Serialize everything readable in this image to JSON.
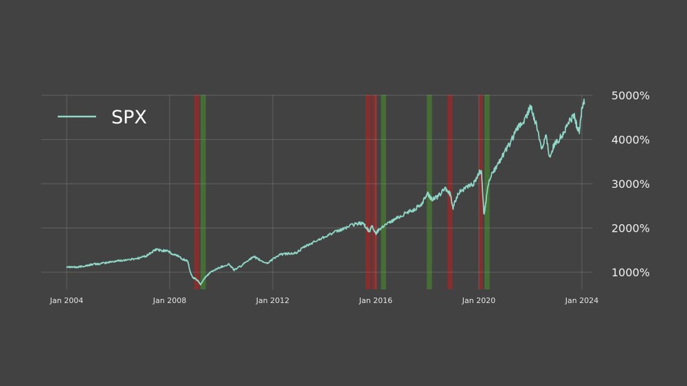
{
  "chart_data": {
    "type": "line",
    "title": "",
    "xlabel": "",
    "ylabel": "",
    "legend": {
      "position": "top-left",
      "entries": [
        "SPX"
      ]
    },
    "grid": true,
    "xlim": [
      2004.0,
      2024.15
    ],
    "ylim": [
      550,
      5080
    ],
    "x_ticks": [
      {
        "value": 2004,
        "label": "Jan 2004"
      },
      {
        "value": 2008,
        "label": "Jan 2008"
      },
      {
        "value": 2012,
        "label": "Jan 2012"
      },
      {
        "value": 2016,
        "label": "Jan 2016"
      },
      {
        "value": 2020,
        "label": "Jan 2020"
      },
      {
        "value": 2024,
        "label": "Jan 2024"
      }
    ],
    "y_ticks": [
      {
        "value": 1000,
        "label": "1000%"
      },
      {
        "value": 2000,
        "label": "2000%"
      },
      {
        "value": 3000,
        "label": "3000%"
      },
      {
        "value": 4000,
        "label": "4000%"
      },
      {
        "value": 5000,
        "label": "5000%"
      }
    ],
    "series": [
      {
        "name": "SPX",
        "color": "#8fd8c8",
        "x": [
          2004.0,
          2004.2,
          2004.4,
          2004.6,
          2004.8,
          2005.0,
          2005.3,
          2005.6,
          2005.9,
          2006.2,
          2006.5,
          2006.8,
          2007.1,
          2007.3,
          2007.5,
          2007.7,
          2007.9,
          2008.1,
          2008.3,
          2008.5,
          2008.7,
          2008.8,
          2008.9,
          2009.0,
          2009.1,
          2009.2,
          2009.4,
          2009.6,
          2009.8,
          2010.0,
          2010.3,
          2010.5,
          2010.8,
          2011.1,
          2011.3,
          2011.6,
          2011.8,
          2012.0,
          2012.3,
          2012.6,
          2012.9,
          2013.2,
          2013.5,
          2013.8,
          2014.1,
          2014.4,
          2014.7,
          2015.0,
          2015.3,
          2015.5,
          2015.65,
          2015.75,
          2015.85,
          2016.0,
          2016.1,
          2016.3,
          2016.6,
          2016.9,
          2017.2,
          2017.5,
          2017.8,
          2018.0,
          2018.1,
          2018.2,
          2018.4,
          2018.7,
          2018.9,
          2019.0,
          2019.2,
          2019.5,
          2019.8,
          2020.0,
          2020.1,
          2020.2,
          2020.25,
          2020.4,
          2020.6,
          2020.9,
          2021.2,
          2021.5,
          2021.8,
          2022.0,
          2022.2,
          2022.45,
          2022.6,
          2022.75,
          2022.9,
          2023.1,
          2023.3,
          2023.5,
          2023.7,
          2023.8,
          2023.9,
          2024.0,
          2024.1
        ],
        "values": [
          1130,
          1120,
          1110,
          1130,
          1150,
          1180,
          1190,
          1220,
          1250,
          1270,
          1290,
          1320,
          1370,
          1450,
          1520,
          1480,
          1500,
          1400,
          1380,
          1300,
          1250,
          1000,
          880,
          850,
          800,
          720,
          900,
          1000,
          1070,
          1120,
          1180,
          1050,
          1150,
          1300,
          1340,
          1240,
          1200,
          1300,
          1400,
          1420,
          1430,
          1560,
          1650,
          1740,
          1830,
          1900,
          1970,
          2050,
          2100,
          2110,
          2000,
          1900,
          2050,
          1870,
          1950,
          2050,
          2150,
          2250,
          2350,
          2420,
          2550,
          2800,
          2700,
          2650,
          2700,
          2900,
          2750,
          2450,
          2800,
          2900,
          3000,
          3250,
          3300,
          2300,
          2500,
          3100,
          3300,
          3600,
          3900,
          4250,
          4450,
          4750,
          4400,
          3800,
          4100,
          3600,
          3850,
          4000,
          4150,
          4400,
          4550,
          4300,
          4200,
          4700,
          4850
        ]
      }
    ],
    "bands": [
      {
        "start": 2008.95,
        "end": 2009.15,
        "color": "#b02222"
      },
      {
        "start": 2009.2,
        "end": 2009.4,
        "color": "#4a8a2e"
      },
      {
        "start": 2015.6,
        "end": 2015.8,
        "color": "#b02222"
      },
      {
        "start": 2015.85,
        "end": 2016.05,
        "color": "#b02222"
      },
      {
        "start": 2016.2,
        "end": 2016.4,
        "color": "#4a8a2e"
      },
      {
        "start": 2017.98,
        "end": 2018.18,
        "color": "#4a8a2e"
      },
      {
        "start": 2018.78,
        "end": 2018.98,
        "color": "#b02222"
      },
      {
        "start": 2020.0,
        "end": 2020.15,
        "color": "#b02222"
      },
      {
        "start": 2020.22,
        "end": 2020.42,
        "color": "#4a8a2e"
      }
    ]
  }
}
